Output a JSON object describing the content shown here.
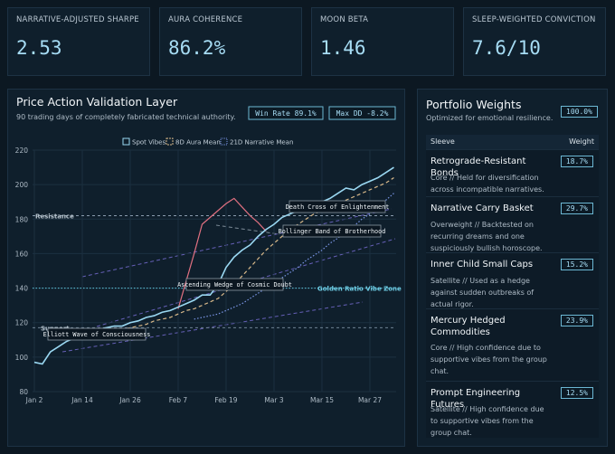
{
  "kpis": [
    {
      "label": "NARRATIVE-ADJUSTED SHARPE",
      "value": "2.53"
    },
    {
      "label": "AURA COHERENCE",
      "value": "86.2%"
    },
    {
      "label": "MOON BETA",
      "value": "1.46"
    },
    {
      "label": "SLEEP-WEIGHTED CONVICTION",
      "value": "7.6/10"
    }
  ],
  "chart_data": {
    "type": "line",
    "title": "Price Action Validation Layer",
    "subtitle": "90 trading days of completely fabricated technical authority.",
    "badges": [
      "Win Rate 89.1%",
      "Max DD -8.2%"
    ],
    "categories": [
      "Jan 2",
      null,
      null,
      null,
      null,
      null,
      "Jan 14",
      null,
      null,
      null,
      null,
      null,
      "Jan 26",
      null,
      null,
      null,
      null,
      null,
      "Feb 7",
      null,
      null,
      null,
      null,
      null,
      "Feb 19",
      null,
      null,
      null,
      null,
      null,
      "Mar 3",
      null,
      null,
      null,
      null,
      null,
      "Mar 15",
      null,
      null,
      null,
      null,
      null,
      "Mar 27",
      null,
      null,
      null
    ],
    "series": [
      {
        "name": "Spot Vibes",
        "color": "#9ad8f2",
        "style": "solid",
        "values": [
          97,
          96,
          103,
          106,
          109,
          111,
          113,
          114,
          116,
          117,
          118,
          118,
          120,
          121,
          123,
          124,
          126,
          127,
          129,
          131,
          133,
          136,
          136,
          142,
          152,
          158,
          162,
          165,
          170,
          174,
          177,
          181,
          183,
          185,
          187,
          189,
          190,
          192,
          195,
          198,
          197,
          200,
          202,
          204,
          207,
          210
        ]
      },
      {
        "name": "8D Aura Mean",
        "color": "#d9b98a",
        "style": "dashed",
        "values": [
          null,
          null,
          null,
          null,
          null,
          null,
          null,
          110,
          112,
          114,
          115,
          116,
          117,
          118,
          119,
          121,
          122,
          123,
          125,
          127,
          128,
          130,
          132,
          134,
          138,
          142,
          147,
          152,
          157,
          162,
          166,
          170,
          174,
          177,
          180,
          183,
          185,
          187,
          189,
          191,
          193,
          195,
          197,
          199,
          201,
          204
        ]
      },
      {
        "name": "21D Narrative Mean",
        "color": "#7a96e6",
        "style": "dotted",
        "values": [
          null,
          null,
          null,
          null,
          null,
          null,
          null,
          null,
          null,
          null,
          null,
          null,
          null,
          null,
          null,
          null,
          null,
          null,
          null,
          null,
          122,
          123,
          124,
          125,
          127,
          129,
          131,
          134,
          137,
          140,
          143,
          146,
          149,
          152,
          156,
          159,
          162,
          166,
          169,
          173,
          176,
          180,
          183,
          187,
          191,
          195
        ]
      },
      {
        "color": "#e07080",
        "style": "solid",
        "values": [
          null,
          null,
          null,
          null,
          null,
          null,
          null,
          null,
          null,
          null,
          null,
          null,
          null,
          null,
          null,
          null,
          null,
          null,
          128,
          144,
          160,
          177,
          181,
          185,
          189,
          192,
          187,
          182,
          178,
          173,
          null,
          null,
          null,
          null,
          null,
          null,
          null,
          null,
          null,
          null,
          null,
          null,
          null,
          null,
          null,
          null
        ]
      }
    ],
    "reference_lines": [
      {
        "label": "Resistance",
        "value": 182,
        "color": "#8a9cad"
      },
      {
        "label": "Golden Ratio Vibe Zone",
        "value": 140,
        "color": "#5fc8e0"
      },
      {
        "label": "Support",
        "value": 117,
        "color": "#6f8294"
      }
    ],
    "annotations": [
      "Death Cross of Enlightenment",
      "Bollinger Band of Brotherhood",
      "Ascending Wedge of Cosmic Doubt",
      "Elliott Wave of Consciousness"
    ],
    "ylim": [
      80,
      220
    ],
    "yticks": [
      80,
      100,
      120,
      140,
      160,
      180,
      200,
      220
    ],
    "grid": true,
    "legend": "top"
  },
  "portfolio": {
    "title": "Portfolio Weights",
    "subtitle": "Optimized for emotional resilience.",
    "total": "100.0%",
    "columns": [
      "Sleeve",
      "Weight"
    ],
    "rows": [
      {
        "name": "Retrograde-Resistant Bonds",
        "weight": "18.7%",
        "note": "Core // Held for diversification across incompatible narratives."
      },
      {
        "name": "Narrative Carry Basket",
        "weight": "29.7%",
        "note": "Overweight // Backtested on recurring dreams and one suspiciously bullish horoscope."
      },
      {
        "name": "Inner Child Small Caps",
        "weight": "15.2%",
        "note": "Satellite // Used as a hedge against sudden outbreaks of actual rigor."
      },
      {
        "name": "Mercury Hedged Commodities",
        "weight": "23.9%",
        "note": "Core // High confidence due to supportive vibes from the group chat."
      },
      {
        "name": "Prompt Engineering Futures",
        "weight": "12.5%",
        "note": "Satellite // High confidence due to supportive vibes from the group chat."
      }
    ]
  }
}
